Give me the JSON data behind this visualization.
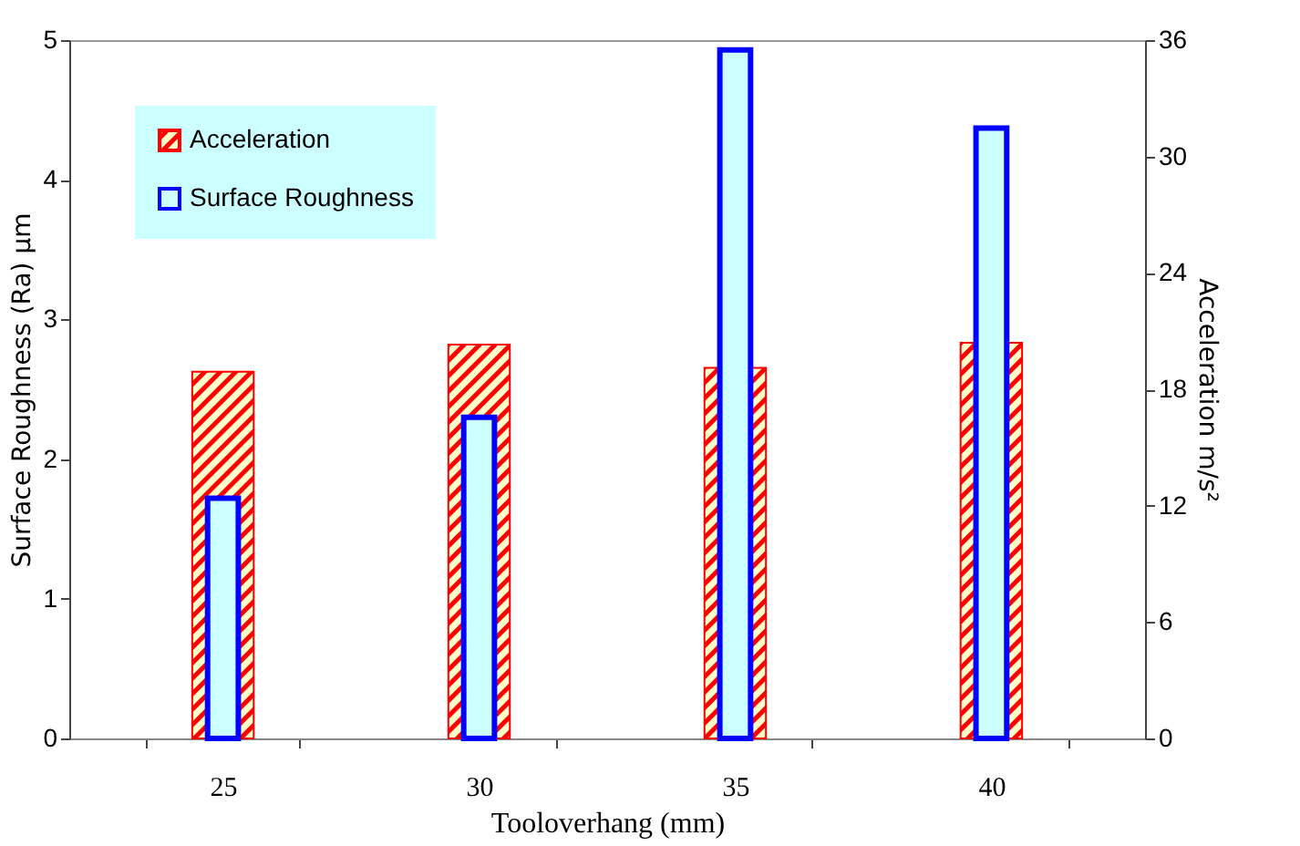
{
  "chart_data": {
    "type": "bar",
    "xlabel": "Tooloverhang (mm)",
    "ylabel": "Surface Roughness (Ra) µm",
    "y2label": "Acceleration m/s²",
    "categories": [
      "25",
      "30",
      "35",
      "40"
    ],
    "series": [
      {
        "name": "Acceleration",
        "color": "#ff0000",
        "axis": "y2",
        "values": [
          18.9,
          20.3,
          19.1,
          20.4
        ]
      },
      {
        "name": "Surface Roughness",
        "color": "#0000ff",
        "values": [
          1.72,
          2.3,
          4.93,
          4.37
        ]
      }
    ],
    "ylim": [
      0,
      5
    ],
    "yticks": [
      0,
      1,
      2,
      3,
      4,
      5
    ],
    "y2lim": [
      0,
      36
    ],
    "y2ticks": [
      0,
      6,
      12,
      18,
      24,
      30,
      36
    ],
    "grid": false,
    "legend": "top left"
  }
}
